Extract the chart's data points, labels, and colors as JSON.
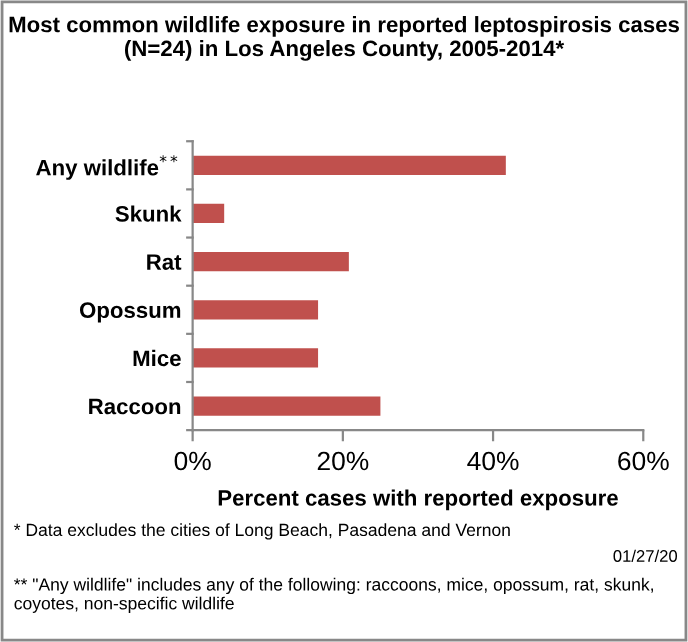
{
  "chart_data": {
    "type": "bar",
    "orientation": "horizontal",
    "title": "Most common wildlife exposure in reported leptospirosis cases (N=24) in Los Angeles County, 2005-2014*",
    "xlabel": "Percent cases with reported exposure",
    "categories": [
      "Any wildlife$^{**}$",
      "Skunk",
      "Rat",
      "Opossum",
      "Mice",
      "Raccoon"
    ],
    "values": [
      41.7,
      4.2,
      20.8,
      16.7,
      16.7,
      25
    ],
    "color": "#c0504d",
    "xlim": [
      0,
      60
    ],
    "xticks": [
      {
        "value": 0,
        "label": "0%"
      },
      {
        "value": 20,
        "label": "20%"
      },
      {
        "value": 40,
        "label": "40%"
      },
      {
        "value": 60,
        "label": "60%"
      }
    ],
    "grid": false,
    "annotations": [
      "* Data excludes the cities of Long Beach, Pasadena and Vernon",
      "** \"Any wildlife\" includes any of the following: raccoons, mice, opossum, rat, skunk, coyotes, non-specific wildlife",
      "01/27/20"
    ]
  }
}
